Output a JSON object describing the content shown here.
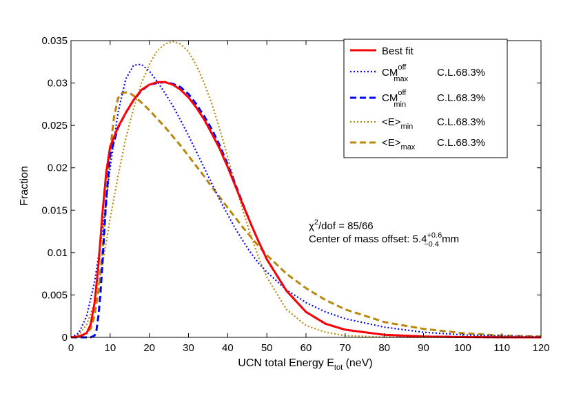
{
  "chart_data": {
    "type": "line",
    "xlabel_main": "UCN total Energy E",
    "xlabel_sub": "tot",
    "xlabel_unit": " (neV)",
    "ylabel": "Fraction",
    "xlim": [
      0,
      120
    ],
    "ylim": [
      0,
      0.035
    ],
    "xticks": [
      0,
      10,
      20,
      30,
      40,
      50,
      60,
      70,
      80,
      90,
      100,
      110,
      120
    ],
    "yticks": [
      0,
      0.005,
      0.01,
      0.015,
      0.02,
      0.025,
      0.03,
      0.035
    ],
    "ytick_labels": [
      "0",
      "0.005",
      "0.01",
      "0.015",
      "0.02",
      "0.025",
      "0.03",
      "0.035"
    ],
    "legend_position": "top-right",
    "series": [
      {
        "id": "best",
        "name": "Best fit",
        "color": "#ff0000",
        "style": "solid",
        "x": [
          0,
          2,
          4,
          5,
          6,
          7,
          8,
          9,
          10,
          12,
          14,
          16,
          18,
          20,
          22,
          24,
          26,
          28,
          30,
          32,
          34,
          36,
          38,
          40,
          42,
          44,
          46,
          48,
          50,
          55,
          60,
          65,
          70,
          80,
          90,
          100,
          110,
          120
        ],
        "y": [
          0,
          0.0001,
          0.0005,
          0.0015,
          0.004,
          0.0085,
          0.0145,
          0.0195,
          0.0225,
          0.0248,
          0.0265,
          0.028,
          0.0292,
          0.0298,
          0.0301,
          0.0301,
          0.0298,
          0.0292,
          0.0283,
          0.0271,
          0.0257,
          0.024,
          0.0222,
          0.0201,
          0.0178,
          0.0155,
          0.0133,
          0.0112,
          0.0092,
          0.0055,
          0.003,
          0.0016,
          0.0009,
          0.0003,
          0.0001,
          4e-05,
          1e-05,
          0
        ]
      },
      {
        "id": "cmmax",
        "name": "CM",
        "sup": "off",
        "sub": "max",
        "cl": "C.L.68.3%",
        "color": "#0000ff",
        "style": "dotted",
        "x": [
          0,
          2,
          4,
          6,
          8,
          10,
          12,
          14,
          16,
          18,
          20,
          22,
          24,
          26,
          28,
          30,
          32,
          34,
          36,
          38,
          40,
          42,
          44,
          46,
          48,
          50,
          55,
          60,
          65,
          70,
          80,
          90,
          100,
          110,
          120
        ],
        "y": [
          0,
          0.0005,
          0.0025,
          0.0065,
          0.0125,
          0.02,
          0.0265,
          0.0305,
          0.0321,
          0.0322,
          0.0314,
          0.0302,
          0.0288,
          0.0273,
          0.0256,
          0.0238,
          0.0219,
          0.02,
          0.0181,
          0.0162,
          0.0145,
          0.0128,
          0.0113,
          0.0099,
          0.0087,
          0.0077,
          0.0056,
          0.0041,
          0.003,
          0.0022,
          0.0012,
          0.0006,
          0.0003,
          0.00015,
          8e-05
        ]
      },
      {
        "id": "cmmin",
        "name": "CM",
        "sup": "off",
        "sub": "min",
        "cl": "C.L.68.3%",
        "color": "#0000ff",
        "style": "dashed",
        "x": [
          0,
          5,
          6,
          6.5,
          7,
          7.5,
          8,
          8.5,
          9,
          10,
          12,
          14,
          16,
          18,
          20,
          22,
          24,
          26,
          28,
          30,
          32,
          34,
          36,
          38,
          40,
          42,
          44,
          46,
          48,
          50,
          55,
          60,
          65,
          70,
          80,
          90,
          100,
          110,
          120
        ],
        "y": [
          0,
          0,
          0.0002,
          0.0008,
          0.0025,
          0.005,
          0.0085,
          0.0125,
          0.0165,
          0.0215,
          0.0247,
          0.0265,
          0.028,
          0.0291,
          0.0298,
          0.03,
          0.0301,
          0.0299,
          0.0295,
          0.0287,
          0.0275,
          0.0261,
          0.0245,
          0.0226,
          0.0204,
          0.018,
          0.0156,
          0.0133,
          0.0112,
          0.0092,
          0.0055,
          0.003,
          0.0016,
          0.0009,
          0.0003,
          0.0001,
          4e-05,
          1e-05,
          0
        ]
      },
      {
        "id": "emin",
        "name": "<E>",
        "sub": "min",
        "cl": "C.L.68.3%",
        "color": "#b8860b",
        "style": "dotted",
        "x": [
          0,
          2,
          4,
          6,
          8,
          10,
          12,
          14,
          16,
          18,
          20,
          22,
          24,
          26,
          28,
          30,
          32,
          34,
          36,
          38,
          40,
          42,
          44,
          46,
          48,
          50,
          55,
          60,
          65,
          70,
          80,
          90,
          100,
          110,
          120
        ],
        "y": [
          0,
          0.0003,
          0.0015,
          0.004,
          0.0085,
          0.014,
          0.019,
          0.0235,
          0.027,
          0.03,
          0.0322,
          0.0338,
          0.0346,
          0.0349,
          0.0346,
          0.0337,
          0.0321,
          0.03,
          0.0275,
          0.0245,
          0.0213,
          0.018,
          0.0148,
          0.0119,
          0.0093,
          0.0071,
          0.0033,
          0.0014,
          0.0006,
          0.0002,
          3e-05,
          0,
          0,
          0,
          0
        ]
      },
      {
        "id": "emax",
        "name": "<E>",
        "sub": "max",
        "cl": "C.L.68.3%",
        "color": "#b8860b",
        "style": "dashed",
        "x": [
          0,
          3,
          5,
          6,
          7,
          8,
          9,
          10,
          11,
          12,
          13,
          14,
          15,
          16,
          18,
          20,
          22,
          24,
          26,
          28,
          30,
          32,
          34,
          36,
          38,
          40,
          42,
          44,
          46,
          48,
          50,
          55,
          60,
          65,
          70,
          80,
          90,
          100,
          110,
          120
        ],
        "y": [
          0,
          0.0002,
          0.001,
          0.0025,
          0.0055,
          0.01,
          0.016,
          0.022,
          0.026,
          0.0282,
          0.0288,
          0.0289,
          0.0288,
          0.0285,
          0.0277,
          0.0268,
          0.0258,
          0.0248,
          0.0237,
          0.0226,
          0.0214,
          0.0202,
          0.019,
          0.0177,
          0.0165,
          0.0153,
          0.0141,
          0.0129,
          0.0118,
          0.0107,
          0.0097,
          0.0075,
          0.0058,
          0.0044,
          0.0033,
          0.0018,
          0.001,
          0.0005,
          0.0002,
          0.0001
        ]
      }
    ],
    "annotation": {
      "chi_symbol": "χ",
      "chi_sup": "2",
      "chi_rest": "/dof = 85/66",
      "com_text": "Center of mass offset: 5.4",
      "com_sup": "+0.6",
      "com_sub": "−0.4",
      "com_unit": " mm"
    }
  }
}
